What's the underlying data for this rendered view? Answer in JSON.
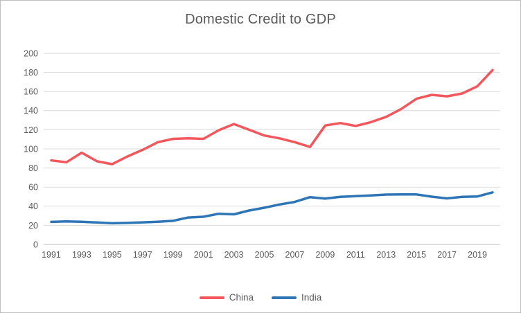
{
  "title": "Domestic Credit to GDP",
  "colors": {
    "china_line": "#f4575b",
    "india_line": "#2e75b6",
    "gridline": "#d9d9d9",
    "axis_line": "#bfbfbf",
    "label_text": "#595959"
  },
  "legend": {
    "items": [
      {
        "label": "China",
        "color": "#f4575b"
      },
      {
        "label": "India",
        "color": "#2e75b6"
      }
    ]
  },
  "chart_data": {
    "type": "line",
    "title": "Domestic Credit to GDP",
    "x": [
      1991,
      1992,
      1993,
      1994,
      1995,
      1996,
      1997,
      1998,
      1999,
      2000,
      2001,
      2002,
      2003,
      2004,
      2005,
      2006,
      2007,
      2008,
      2009,
      2010,
      2011,
      2012,
      2013,
      2014,
      2015,
      2016,
      2017,
      2018,
      2019,
      2020
    ],
    "series": [
      {
        "name": "China",
        "color": "#f4575b",
        "values": [
          88,
          86,
          96,
          87,
          84,
          92,
          99,
          107,
          110.5,
          111,
          110.5,
          119.5,
          126,
          120,
          114,
          111,
          107,
          102,
          124.5,
          127,
          124,
          128,
          133.5,
          141.8,
          152.5,
          156.5,
          155,
          158,
          165.5,
          182.5
        ]
      },
      {
        "name": "India",
        "color": "#2e75b6",
        "values": [
          23.6,
          24.1,
          23.7,
          23,
          22.2,
          22.5,
          23.1,
          23.8,
          24.7,
          28.2,
          29,
          32.1,
          31.5,
          35.5,
          38.4,
          41.8,
          44.5,
          49.5,
          48,
          49.8,
          50.5,
          51.3,
          52.2,
          52.3,
          52.3,
          50,
          48.2,
          49.8,
          50.2,
          54.5
        ]
      }
    ],
    "ylim": [
      0,
      200
    ],
    "ytick_step": 20,
    "ytick_labels": [
      "0",
      "20",
      "40",
      "60",
      "80",
      "100",
      "120",
      "140",
      "160",
      "180",
      "200"
    ],
    "xtick_labels": [
      "1991",
      "1993",
      "1995",
      "1997",
      "1999",
      "2001",
      "2003",
      "2005",
      "2007",
      "2009",
      "2011",
      "2013",
      "2015",
      "2017",
      "2019"
    ],
    "xtick_every": 2,
    "grid": true,
    "legend_position": "bottom"
  }
}
